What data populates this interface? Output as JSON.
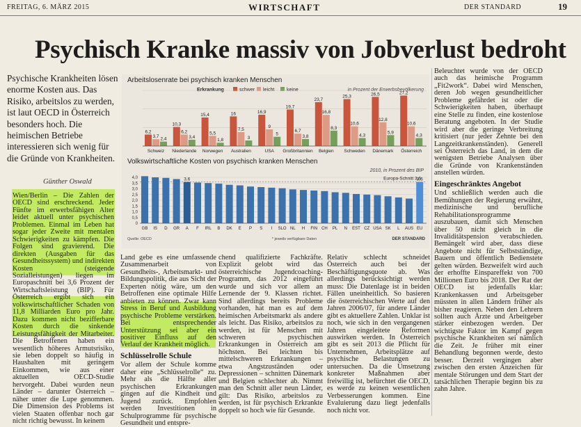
{
  "header": {
    "date": "FREITAG, 6. MÄRZ 2015",
    "section": "WIRTSCHAFT",
    "paper": "DER STANDARD",
    "page": "19"
  },
  "headline": "Psychisch Kranke massiv von Jobverlust bedroht",
  "lead": "Psychische Krankheiten lösen enorme Kosten aus. Das Risiko, arbeitslos zu werden, ist laut OECD in Österreich besonders hoch. Die heimischen Betriebe interessieren sich wenig für die Gründe von Krankheiten.",
  "author": "Günther Oswald",
  "col1": "Wien/Berlin – Die Zahlen der OECD sind erschreckend. Jeder Fünfte im erwerbsfähigen Alter leidet aktuell unter psychischen Problemen. Einmal im Leben hat sogar jeder Zweite mit mentalen Schwierigkeiten zu kämpfen. Die Folgen sind gravierend. Die direkten (Ausgaben für das Gesundheitssystem) und indirekten Kosten (steigende Sozialleistungen) liegen im Europaschnitt bei 3,6 Prozent der Wirtschaftsleistung (BIP). Für Österreich ergibt sich ein volkswirtschaftlicher Schaden von 11,8 Milliarden Euro pro Jahr. Dazu kommen nicht bezifferbare Kosten durch die sinkende Leistungsfähigkeit der Mitarbeiter. Die Betroffenen haben ein wesentlich höheres Armutsrisiko, sie leben doppelt so häufig in Haushalten mit geringem Einkommen, wie aus einer aktuellen OECD-Studie hervorgeht. Dabei wurden neun Länder – darunter Österreich – näher unter die Lupe genommen. Die Dimension des Problems ist vielen Staaten offenbar noch gar nicht richtig bewusst. In keinem",
  "col2": "Land gebe es eine umfassende Zusammenarbeit von Gesundheits-, Arbeitsmarkt- und Bildungspolitik, die aus Sicht der Experten nötig wäre, um den Betroffenen eine optimale Hilfe anbieten zu können. Zwar kann Stress in Beruf und Ausbildung psychische Probleme verstärken. Bei entsprechender Unterstützung sei aber ein positiver Einfluss auf den Verlauf der Krankheit möglich.",
  "col2_head": "Schlüsselrolle Schule",
  "col2b": "Vor allem der Schule komme daher eine „Schlüsselrolle“ zu. Mehr als die Hälfte aller psychischen Erkrankungen gingen auf die Kindheit und Jugend zurück. Empfohlen werden Investitionen in Schulprogramme für psychische Gesundheit und entspre-",
  "col3": "chend qualifizierte Fachkräfte. Explizit gelobt wird das österreichische Jugendcoaching-Programm, das 2012 eingeführt wurde und sich vor allem an Lernende der 9. Klassen richtet. Sind allerdings bereits Probleme vorhanden, hat man es auf dem heimischen Arbeitsmarkt als andere als leicht. Das Risiko, arbeitslos zu werden, ist für Menschen mit schweren psychischen Erkrankungen in Österreich am höchsten. Bei leichten bis mittelschweren Erkrankungen – etwa Angstzuständen oder Depressionen – schnitten Dänemark und Belgien schlechter ab. Nimmt man den Schnitt aller neun Länder, gilt: Das Risiko, arbeitslos zu werden, ist für psychisch Erkrankte doppelt so hoch wie für Gesunde.",
  "col4": "Relativ schlecht schneidet Österreich auch bei der Beschäftigungsquote ab. Was allerdings berücksichtigt werden muss: Die Datenlage ist in beiden Fällen uneinheitlich. So basieren die österreichischen Werte auf den Jahren 2006/07, für andere Länder gibt es aktuellere Zahlen. Unklar ist noch, wie sich in den vergangenen Jahren eingeleitete Reformen auswirken werden. In Österreich gibt es seit 2013 die Pflicht für Unternehmen, Arbeitsplätze auf psychische Belastungen zu untersuchen. Da die Umsetzung konkreter Maßnahmen aber freiwillig ist, befürchtet die OECD, es werde zu keinen wesentlichen Verbesserungen kommen. Eine Evaluierung dazu liegt jedenfalls noch nicht vor.",
  "col5": "Beleuchtet wurde von der OECD auch das heimische Programm „Fit2work“. Dabei wird Menschen, deren Job wegen gesundheitlicher Probleme gefährdet ist oder die Schwierigkeiten haben, überhaupt eine Stelle zu finden, eine kostenlose Beratung angeboten. In der Studie wird aber die geringe Verbreitung kritisiert (nur jeder Zehnte bei den Langzeitkrankenständen). Generell sei Österreich das Land, in dem die wenigsten Betriebe Analysen über die Gründe von Krankenständen anstellen würden.",
  "col5_head": "Eingeschränktes Angebot",
  "col5b": "Und schließlich werden auch die Bemühungen der Regierung erwähnt, medizinische und berufliche Rehabilitationsprogramme auszubauen, damit sich Menschen über 50 nicht gleich in die Invaliditätspension verabschieden. Bemängelt wird aber, dass diese Angebote nicht für Selbstständige, Bauern und öffentlich Bedienstete gelten würden. Bezweifelt wird auch der erhoffte Einspareffekt von 700 Millionen Euro bis 2018. Der Rat der OECD ist jedenfalls klar: Krankenkassen und Arbeitsgeber müssten in allen Ländern früher als bisher reagieren. Neben den Lehrern sollten auch Ärzte und Arbeitgeber stärker einbezogen werden. Der wichtigste Faktor im Kampf gegen psychische Krankheiten sei nämlich die Zeit. Je früher mit einer Behandlung begonnen werde, desto besser. Derzeit vergingen aber zwischen den ersten Anzeichen für mentale Störungen und dem Start der tatsächlichen Therapie beginn bis zu zahn Jahre.",
  "chart_data": [
    {
      "type": "bar",
      "title": "Arbeitslosenrate bei psychisch kranken Menschen",
      "subtitle": "in Prozent der Erwerbsbevölkerung",
      "legend_title": "Erkrankung",
      "categories": [
        "Schweiz",
        "Niederlande",
        "Norwegen",
        "Australien",
        "USA",
        "Großbritannien",
        "Belgien",
        "Schweden",
        "Dänemark",
        "Österreich"
      ],
      "series": [
        {
          "name": "schwer",
          "color": "#c9563c",
          "values": [
            6.2,
            10.3,
            15.4,
            16.0,
            16.9,
            19.7,
            23.7,
            25.3,
            26.5,
            27.2
          ]
        },
        {
          "name": "leicht",
          "color": "#dd9b86",
          "values": [
            3.7,
            6.2,
            5.5,
            7.5,
            9.0,
            6.7,
            16.8,
            10.6,
            12.8,
            10.6
          ]
        },
        {
          "name": "keine",
          "color": "#74a05b",
          "values": [
            2.4,
            3.4,
            1.8,
            3.0,
            5.0,
            3.8,
            8.3,
            4.3,
            5.9,
            4.3
          ]
        }
      ]
    },
    {
      "type": "bar",
      "title": "Volkswirtschaftliche Kosten von psychisch kranken Menschen",
      "subtitle": "2010, in Prozent des BIP",
      "reference_label": "Europa-Schnitt 3,6",
      "categories": [
        "GB",
        "IS",
        "D",
        "GR",
        "A",
        "F",
        "IRL",
        "B",
        "DK",
        "E",
        "P",
        "S",
        "I",
        "SLO",
        "NL",
        "H",
        "FIN",
        "CH",
        "PL",
        "N",
        "EST",
        "CZ",
        "USA",
        "SK",
        "L",
        "AUS",
        "EU"
      ],
      "values": [
        4.1,
        4.0,
        3.95,
        3.85,
        3.6,
        3.55,
        3.5,
        3.45,
        3.35,
        3.3,
        3.2,
        3.15,
        3.1,
        3.05,
        2.95,
        2.9,
        2.85,
        2.8,
        2.7,
        2.65,
        2.55,
        2.5,
        2.45,
        2.35,
        2.25,
        2.15,
        3.6
      ],
      "labels": {
        "A": "3,6",
        "EU": "3,6"
      },
      "ylim": [
        0,
        4
      ],
      "yticks": [
        "0",
        "0,5",
        "1,0",
        "1,5",
        "2,0",
        "2,5",
        "3,0",
        "3,5",
        "4,0"
      ],
      "footnote": "* jeweils verfügbare Daten",
      "source": "Quelle: OECD",
      "credit": "DER STANDARD"
    }
  ]
}
